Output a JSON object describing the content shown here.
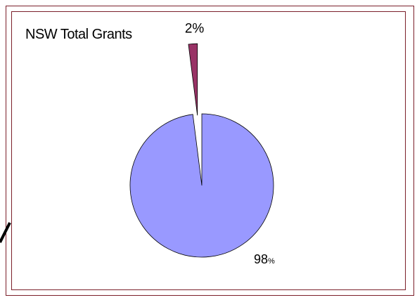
{
  "chart_data": {
    "type": "pie",
    "title": "NSW Total Grants",
    "slices": [
      {
        "value": 2,
        "label": "2%",
        "color": "#993366",
        "exploded": true
      },
      {
        "value": 98,
        "label_number": "98",
        "label_unit": "%",
        "color": "#9999ff",
        "exploded": false
      }
    ],
    "colors": {
      "border": "#7b1f2a",
      "outline": "#000000"
    }
  }
}
